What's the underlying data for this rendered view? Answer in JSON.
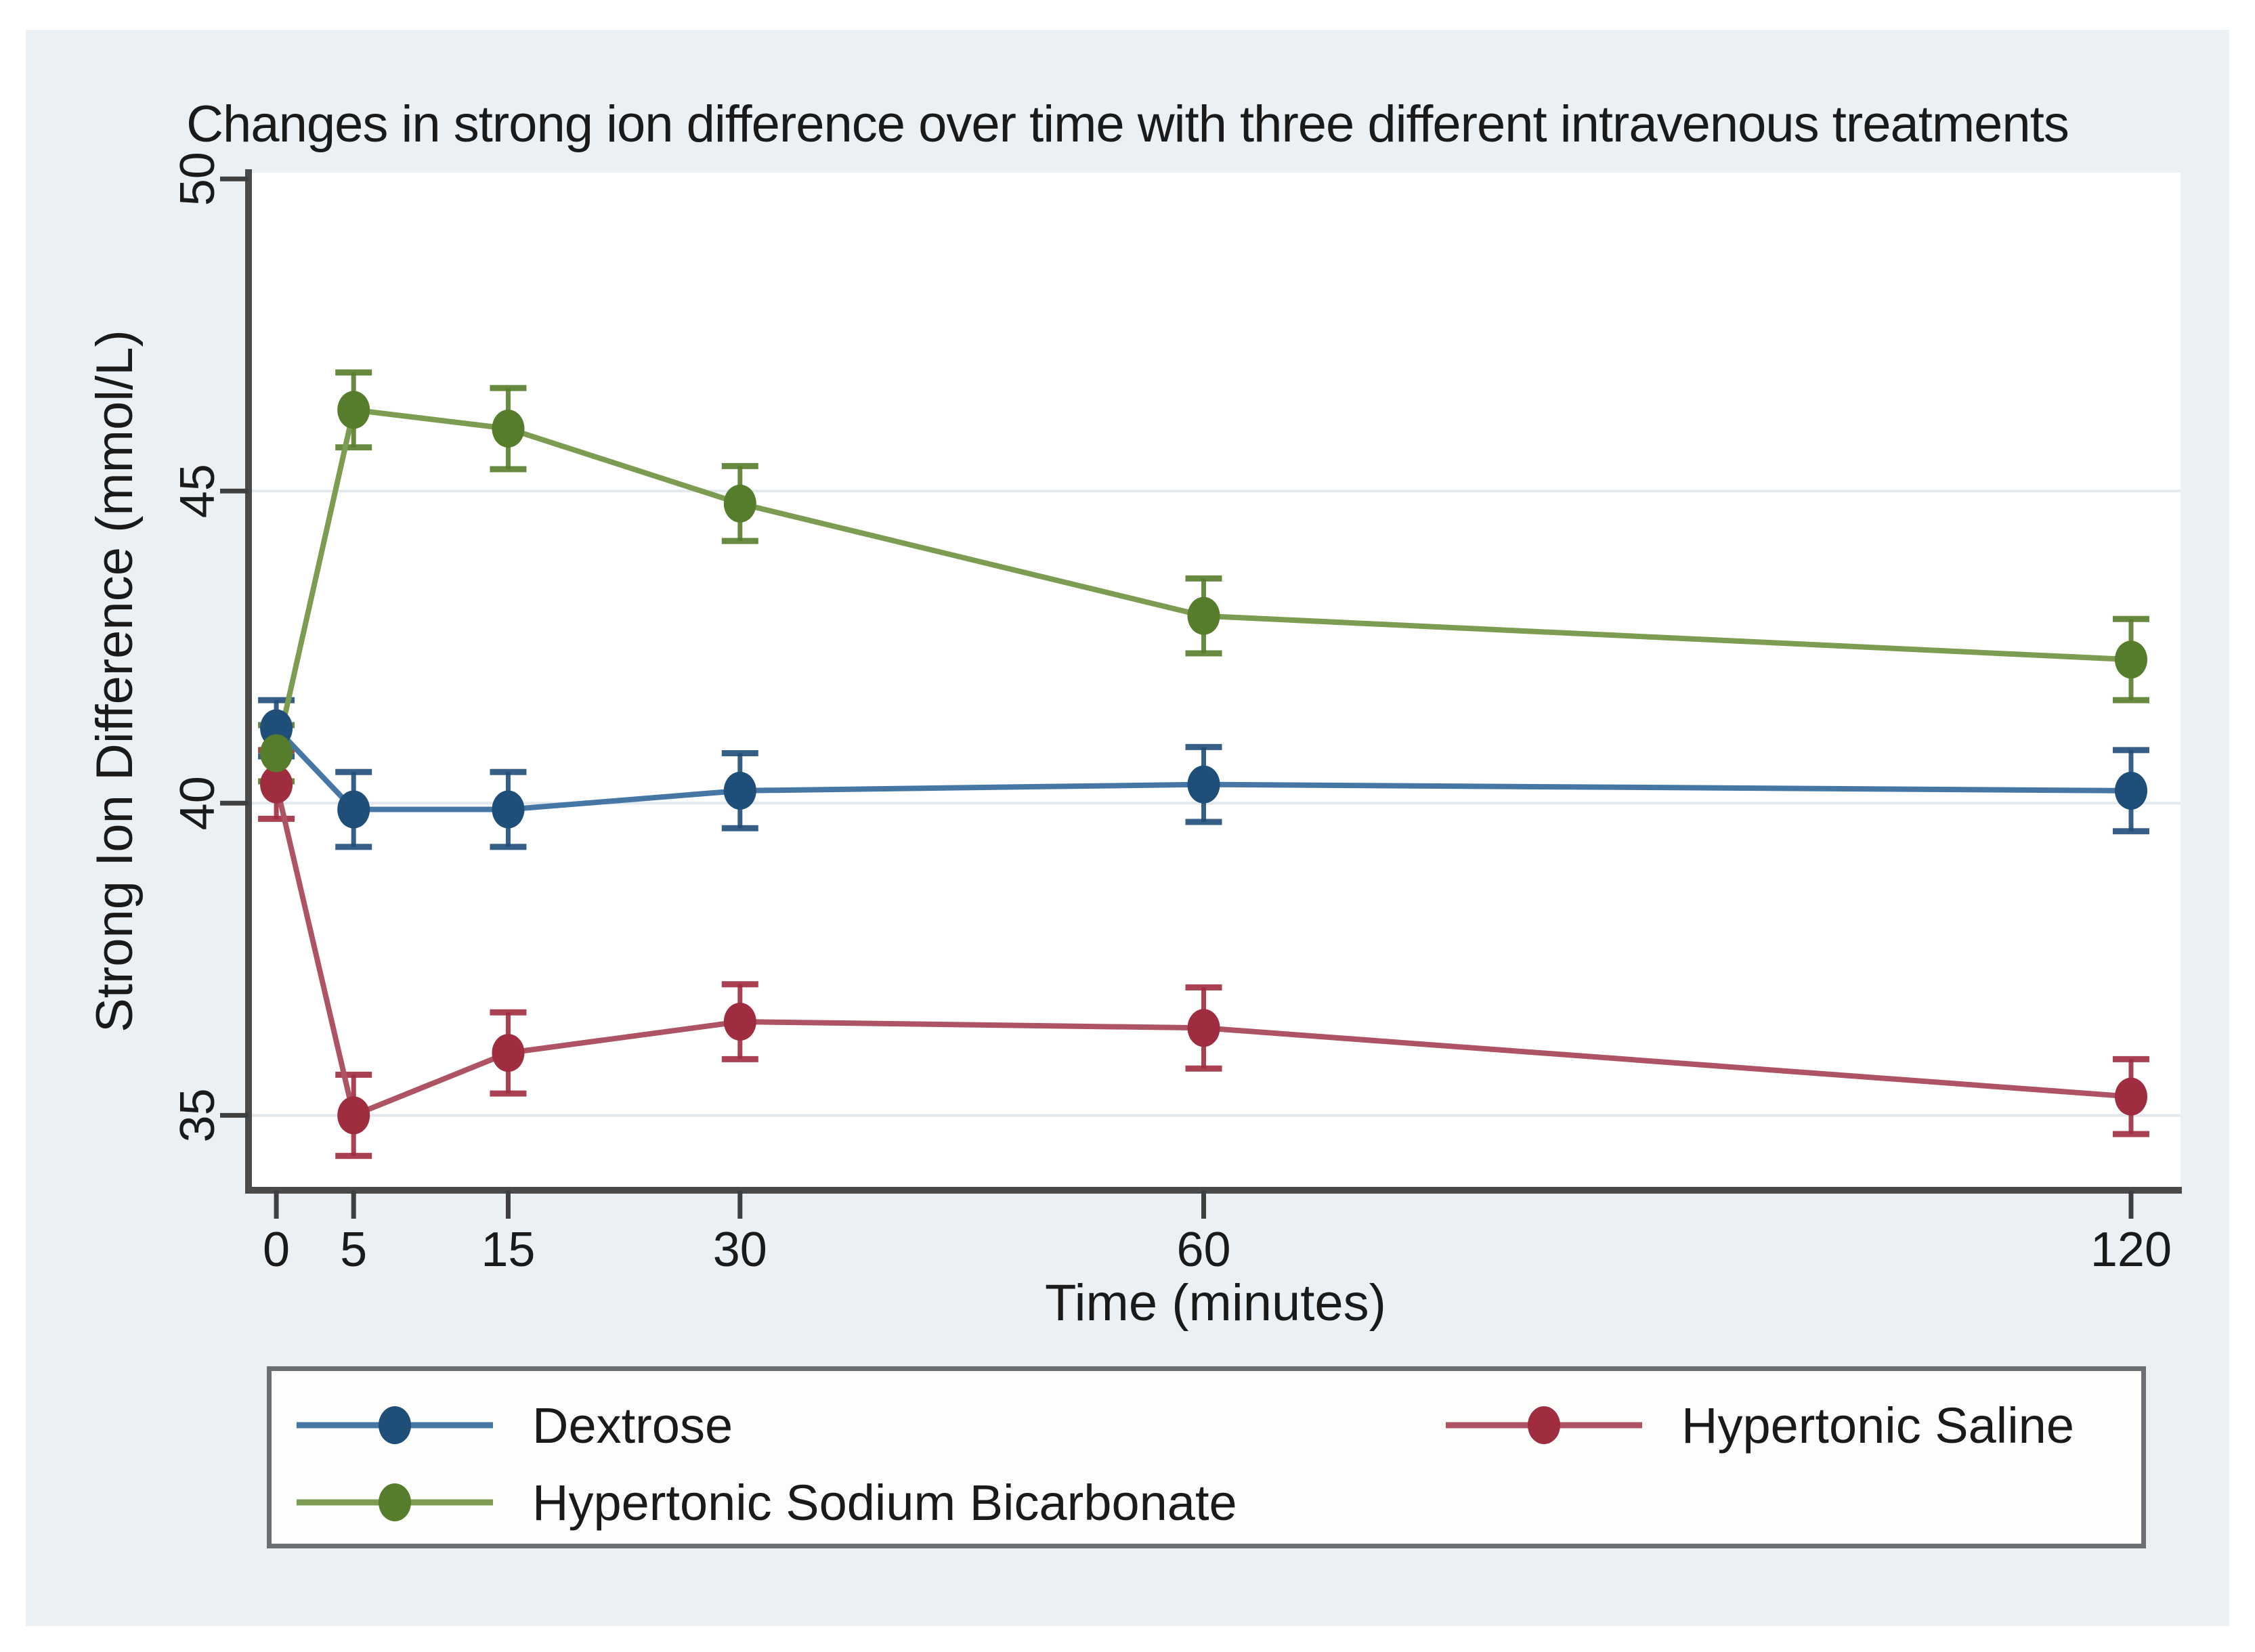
{
  "figure": {
    "background": "#ffffff",
    "panel_background": "#eaf0f4",
    "plot_background": "#ffffff",
    "axis_color": "#4a4a4a",
    "tick_color": "#3f3f3f",
    "grid_color": "#e2e8ec",
    "text_color": "#1a1a1a",
    "legend_border_color": "#6b6f73",
    "legend_background": "#fdfdfc"
  },
  "chart_data": {
    "type": "line",
    "title": "Changes in strong ion difference over time with three different intravenous treatments",
    "xlabel": "Time (minutes)",
    "ylabel": "Strong Ion Difference (mmol/L)",
    "x": [
      0,
      5,
      15,
      30,
      60,
      120
    ],
    "x_tick_labels": [
      "0",
      "5",
      "15",
      "30",
      "60",
      "120"
    ],
    "y_ticks": [
      35,
      40,
      45,
      50
    ],
    "grid_ticks": [
      35,
      40,
      45
    ],
    "xlim": [
      -1.8,
      123.2
    ],
    "ylim": [
      33.8,
      50.1
    ],
    "grid": true,
    "error_bars": true,
    "legend_position": "bottom",
    "series": [
      {
        "name": "Dextrose",
        "marker_color": "#1F4E79",
        "line_color": "#4677A4",
        "values": [
          41.2,
          39.9,
          39.9,
          40.2,
          40.3,
          40.2
        ],
        "ci": [
          0.45,
          0.6,
          0.6,
          0.6,
          0.6,
          0.65
        ]
      },
      {
        "name": "Hypertonic Saline",
        "marker_color": "#A02C3F",
        "line_color": "#AE5364",
        "values": [
          40.3,
          35.0,
          36.0,
          36.5,
          36.4,
          35.3
        ],
        "ci": [
          0.55,
          0.65,
          0.65,
          0.6,
          0.65,
          0.6
        ]
      },
      {
        "name": "Hypertonic Sodium Bicarbonate",
        "marker_color": "#567D2B",
        "line_color": "#7C9C51",
        "values": [
          40.8,
          46.3,
          46.0,
          44.8,
          43.0,
          42.3
        ],
        "ci": [
          0.45,
          0.6,
          0.65,
          0.6,
          0.6,
          0.65
        ]
      }
    ]
  }
}
